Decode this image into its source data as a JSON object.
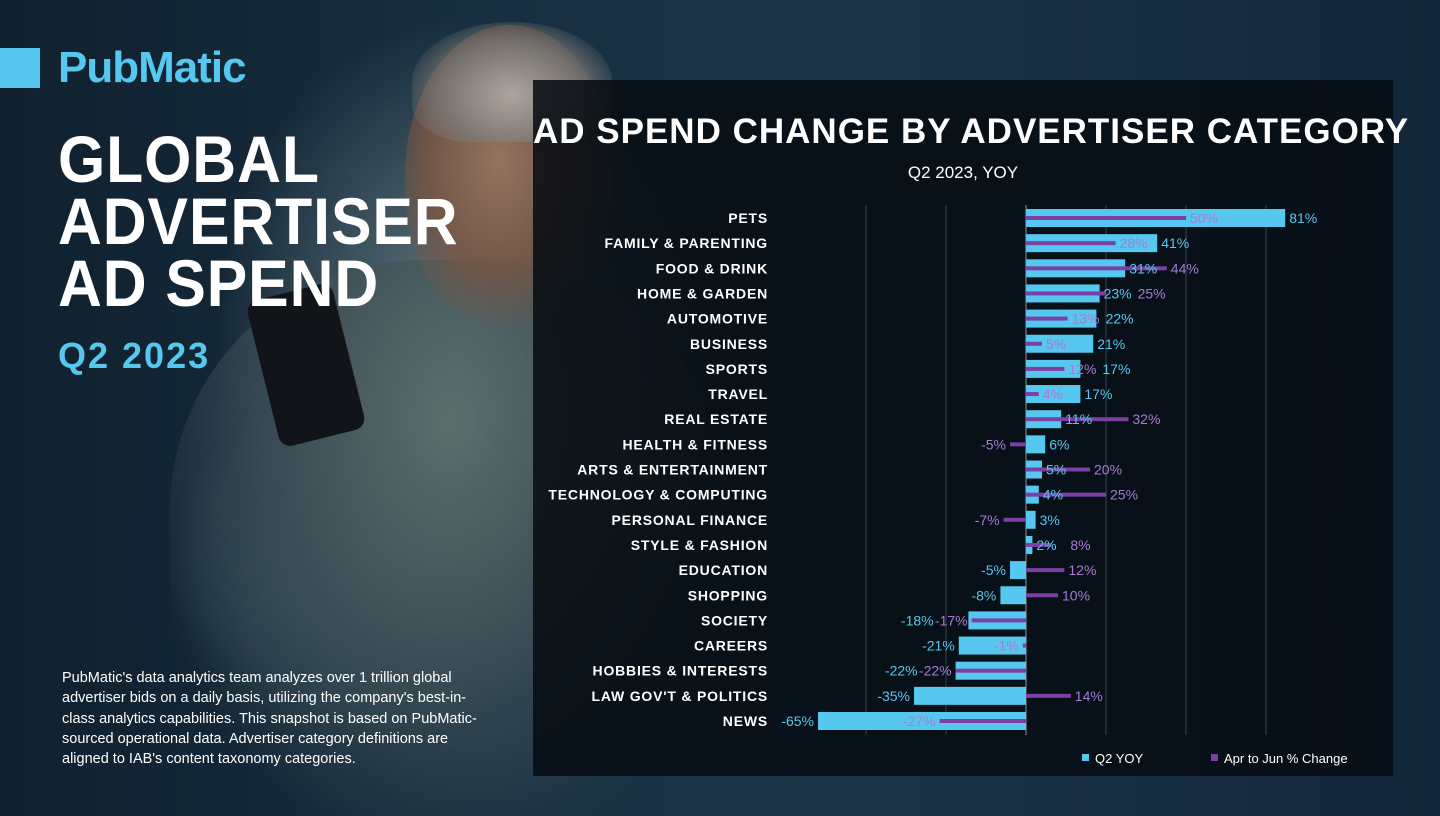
{
  "brand": {
    "name": "PubMatic",
    "accent_color": "#56c8ef",
    "secondary_color": "#7b3fa6"
  },
  "header": {
    "title_lines": [
      "GLOBAL",
      "ADVERTISER",
      "AD SPEND"
    ],
    "period": "Q2 2023"
  },
  "description": "PubMatic's data analytics team analyzes over 1 trillion global advertiser bids on a daily basis, utilizing the company's best-in-class analytics capabilities. This snapshot is based on PubMatic-sourced operational data. Advertiser category definitions are aligned to IAB's content taxonomy categories.",
  "chart_data": {
    "type": "bar",
    "orientation": "horizontal",
    "title": "AD SPEND CHANGE BY ADVERTISER CATEGORY",
    "subtitle": "Q2 2023, YOY",
    "categories": [
      "PETS",
      "FAMILY & PARENTING",
      "FOOD & DRINK",
      "HOME & GARDEN",
      "AUTOMOTIVE",
      "BUSINESS",
      "SPORTS",
      "TRAVEL",
      "REAL ESTATE",
      "HEALTH & FITNESS",
      "ARTS & ENTERTAINMENT",
      "TECHNOLOGY & COMPUTING",
      "PERSONAL FINANCE",
      "STYLE & FASHION",
      "EDUCATION",
      "SHOPPING",
      "SOCIETY",
      "CAREERS",
      "HOBBIES & INTERESTS",
      "LAW GOV'T & POLITICS",
      "NEWS"
    ],
    "series": [
      {
        "name": "Q2 YOY",
        "color": "#56c8ef",
        "values": [
          81,
          41,
          31,
          23,
          22,
          21,
          17,
          17,
          11,
          6,
          5,
          4,
          3,
          2,
          -5,
          -8,
          -18,
          -21,
          -22,
          -35,
          -65
        ]
      },
      {
        "name": "Apr to Jun % Change",
        "color": "#7b3fa6",
        "values": [
          50,
          28,
          44,
          25,
          13,
          5,
          12,
          4,
          32,
          -5,
          20,
          25,
          -7,
          8,
          12,
          10,
          -17,
          -1,
          -22,
          14,
          -27
        ]
      }
    ],
    "value_suffix": "%",
    "legend_position": "bottom-right",
    "grid": true
  }
}
